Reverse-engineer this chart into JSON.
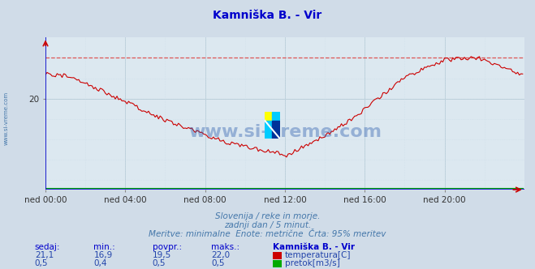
{
  "title": "Kamniška B. - Vir",
  "title_color": "#0000cc",
  "bg_color": "#d0dce8",
  "plot_bg_color": "#dce8f0",
  "grid_color_major": "#b8ccd8",
  "grid_color_minor": "#ccdde8",
  "xlabel_ticks": [
    "ned 00:00",
    "ned 04:00",
    "ned 08:00",
    "ned 12:00",
    "ned 16:00",
    "ned 20:00"
  ],
  "xlim": [
    0,
    288
  ],
  "ylim": [
    15.5,
    23.0
  ],
  "ytick_val": 20,
  "temp_color": "#cc0000",
  "flow_color": "#00aa00",
  "dashed_line_color": "#dd5555",
  "dashed_line_value": 22.0,
  "axis_color": "#0000cc",
  "arrow_color": "#cc0000",
  "watermark_text": "www.si-vreme.com",
  "watermark_color": "#2255aa",
  "footer_line1": "Slovenija / reke in morje.",
  "footer_line2": "zadnji dan / 5 minut.",
  "footer_line3": "Meritve: minimalne  Enote: metrične  Črta: 95% meritev",
  "footer_color": "#4477aa",
  "table_header": [
    "sedaj:",
    "min.:",
    "povpr.:",
    "maks.:",
    "Kamniška B. - Vir"
  ],
  "table_row1": [
    "21,1",
    "16,9",
    "19,5",
    "22,0",
    "temperatura[C]"
  ],
  "table_row2": [
    "0,5",
    "0,4",
    "0,5",
    "0,5",
    "pretok[m3/s]"
  ],
  "table_color_values": "#2244aa",
  "table_color_header": "#0000cc",
  "sidebar_text": "www.si-vreme.com",
  "sidebar_color": "#4477aa",
  "logo_colors": [
    "#ffff00",
    "#00ccff",
    "#00aaee",
    "#003399"
  ]
}
